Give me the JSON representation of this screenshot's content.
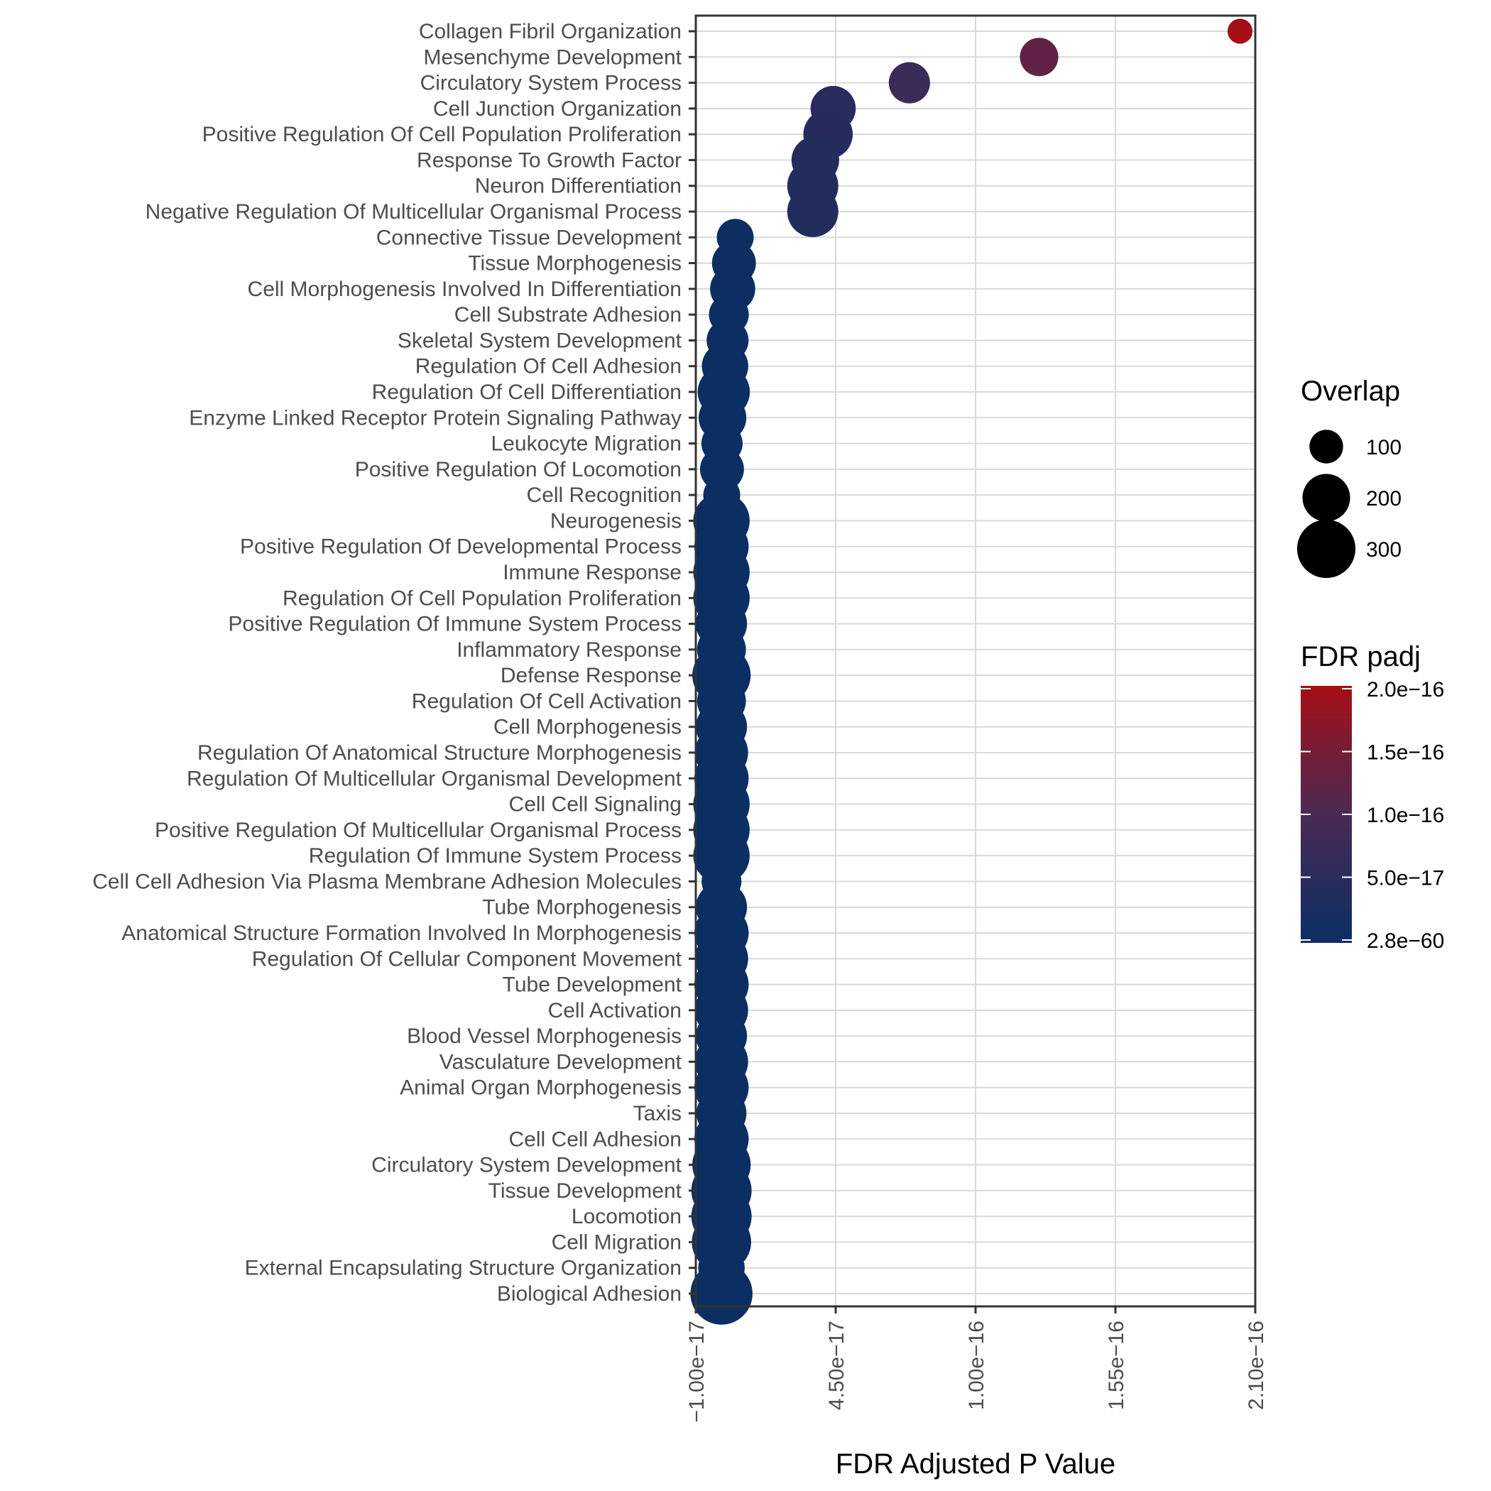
{
  "chart_data": {
    "type": "scatter",
    "xlabel": "FDR Adjusted P Value",
    "xlim": [
      -1e-17,
      2.1e-16
    ],
    "xticks": [
      -1e-17,
      4.5e-17,
      1e-16,
      1.55e-16,
      2.1e-16
    ],
    "xtick_labels": [
      "−1.00e−17",
      "4.50e−17",
      "1.00e−16",
      "1.55e−16",
      "2.10e−16"
    ],
    "grid": true,
    "legend_position": "right",
    "size_legend": {
      "title": "Overlap",
      "entries": [
        {
          "label": "100",
          "value": 100
        },
        {
          "label": "200",
          "value": 200
        },
        {
          "label": "300",
          "value": 300
        }
      ]
    },
    "color_legend": {
      "title": "FDR padj",
      "low_color": "#0b2e63",
      "high_color": "#a50f15",
      "ticks": [
        {
          "label": "2.0e−16",
          "value": 2e-16
        },
        {
          "label": "1.5e−16",
          "value": 1.5e-16
        },
        {
          "label": "1.0e−16",
          "value": 1e-16
        },
        {
          "label": "5.0e−17",
          "value": 5e-17
        },
        {
          "label": "2.8e−60",
          "value": 2.8e-60
        }
      ]
    },
    "points": [
      {
        "term": "Collagen Fibril Organization",
        "x": 2.04e-16,
        "overlap": 55
      },
      {
        "term": "Mesenchyme Development",
        "x": 1.25e-16,
        "overlap": 130
      },
      {
        "term": "Circulatory System Process",
        "x": 7.4e-17,
        "overlap": 150
      },
      {
        "term": "Cell Junction Organization",
        "x": 4.4e-17,
        "overlap": 180
      },
      {
        "term": "Positive Regulation Of Cell Population Proliferation",
        "x": 4.2e-17,
        "overlap": 215
      },
      {
        "term": "Response To Growth Factor",
        "x": 3.7e-17,
        "overlap": 200
      },
      {
        "term": "Neuron Differentiation",
        "x": 3.6e-17,
        "overlap": 230
      },
      {
        "term": "Negative Regulation Of Multicellular Organismal Process",
        "x": 3.6e-17,
        "overlap": 230
      },
      {
        "term": "Connective Tissue Development",
        "x": 5.5e-18,
        "overlap": 120
      },
      {
        "term": "Tissue Morphogenesis",
        "x": 5e-18,
        "overlap": 170
      },
      {
        "term": "Cell Morphogenesis Involved In Differentiation",
        "x": 4.5e-18,
        "overlap": 180
      },
      {
        "term": "Cell Substrate Adhesion",
        "x": 3e-18,
        "overlap": 140
      },
      {
        "term": "Skeletal System Development",
        "x": 2.5e-18,
        "overlap": 155
      },
      {
        "term": "Regulation Of Cell Adhesion",
        "x": 1.5e-18,
        "overlap": 190
      },
      {
        "term": "Regulation Of Cell Differentiation",
        "x": 1e-18,
        "overlap": 240
      },
      {
        "term": "Enzyme Linked Receptor Protein Signaling Pathway",
        "x": 5e-19,
        "overlap": 200
      },
      {
        "term": "Leukocyte Migration",
        "x": 3e-19,
        "overlap": 150
      },
      {
        "term": "Positive Regulation Of Locomotion",
        "x": 3e-19,
        "overlap": 170
      },
      {
        "term": "Cell Recognition",
        "x": 2e-19,
        "overlap": 120
      },
      {
        "term": "Neurogenesis",
        "x": 1e-19,
        "overlap": 280
      },
      {
        "term": "Positive Regulation Of Developmental Process",
        "x": 1e-19,
        "overlap": 260
      },
      {
        "term": "Immune Response",
        "x": 1e-19,
        "overlap": 280
      },
      {
        "term": "Regulation Of Cell Population Proliferation",
        "x": 1e-19,
        "overlap": 280
      },
      {
        "term": "Positive Regulation Of Immune System Process",
        "x": 1e-19,
        "overlap": 230
      },
      {
        "term": "Inflammatory Response",
        "x": 1e-19,
        "overlap": 210
      },
      {
        "term": "Defense Response",
        "x": 1e-19,
        "overlap": 300
      },
      {
        "term": "Regulation Of Cell Activation",
        "x": 1e-19,
        "overlap": 210
      },
      {
        "term": "Cell Morphogenesis",
        "x": 1e-19,
        "overlap": 230
      },
      {
        "term": "Regulation Of Anatomical Structure Morphogenesis",
        "x": 1e-19,
        "overlap": 250
      },
      {
        "term": "Regulation Of Multicellular Organismal Development",
        "x": 1e-19,
        "overlap": 260
      },
      {
        "term": "Cell Cell Signaling",
        "x": 1e-19,
        "overlap": 280
      },
      {
        "term": "Positive Regulation Of Multicellular Organismal Process",
        "x": 1e-19,
        "overlap": 280
      },
      {
        "term": "Regulation Of Immune System Process",
        "x": 1e-19,
        "overlap": 280
      },
      {
        "term": "Cell Cell Adhesion Via Plasma Membrane Adhesion Molecules",
        "x": 1e-19,
        "overlap": 140
      },
      {
        "term": "Tube Morphogenesis",
        "x": 1e-19,
        "overlap": 230
      },
      {
        "term": "Anatomical Structure Formation Involved In Morphogenesis",
        "x": 1e-19,
        "overlap": 260
      },
      {
        "term": "Regulation Of Cellular Component Movement",
        "x": 1e-19,
        "overlap": 250
      },
      {
        "term": "Tube Development",
        "x": 1e-19,
        "overlap": 260
      },
      {
        "term": "Cell Activation",
        "x": 1e-19,
        "overlap": 250
      },
      {
        "term": "Blood Vessel Morphogenesis",
        "x": 1e-19,
        "overlap": 230
      },
      {
        "term": "Vasculature Development",
        "x": 1e-19,
        "overlap": 250
      },
      {
        "term": "Animal Organ Morphogenesis",
        "x": 1e-19,
        "overlap": 260
      },
      {
        "term": "Taxis",
        "x": 1e-19,
        "overlap": 220
      },
      {
        "term": "Cell Cell Adhesion",
        "x": 1e-19,
        "overlap": 260
      },
      {
        "term": "Circulatory System Development",
        "x": 1e-19,
        "overlap": 300
      },
      {
        "term": "Tissue Development",
        "x": 1e-19,
        "overlap": 320
      },
      {
        "term": "Locomotion",
        "x": 1e-19,
        "overlap": 320
      },
      {
        "term": "Cell Migration",
        "x": 1e-19,
        "overlap": 310
      },
      {
        "term": "External Encapsulating Structure Organization",
        "x": 1e-19,
        "overlap": 190
      },
      {
        "term": "Biological Adhesion",
        "x": 1e-19,
        "overlap": 340
      }
    ]
  }
}
